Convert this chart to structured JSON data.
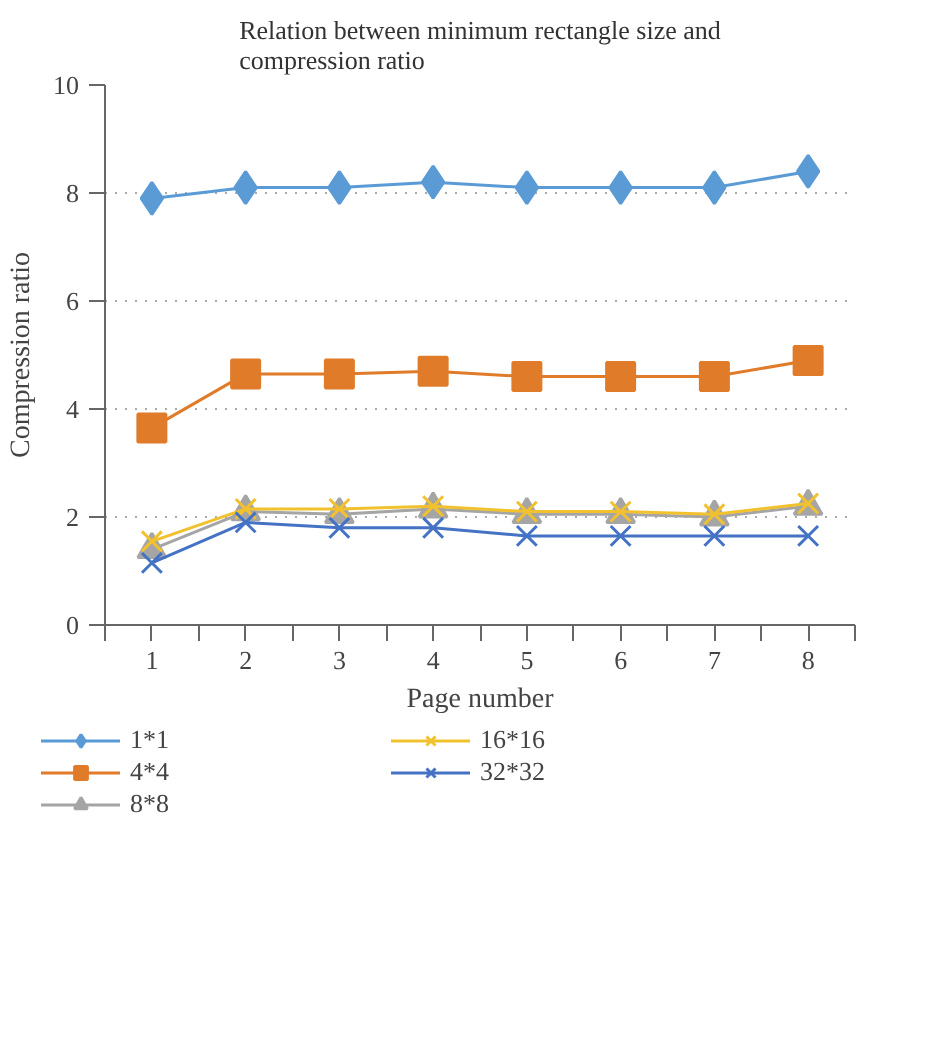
{
  "chart_data": {
    "type": "line",
    "title": "Relation between minimum rectangle size and compression ratio",
    "xlabel": "Page number",
    "ylabel": "Compression ratio",
    "categories": [
      "1",
      "2",
      "3",
      "4",
      "5",
      "6",
      "7",
      "8"
    ],
    "series": [
      {
        "name": "1*1",
        "color": "#5b9bd5",
        "marker": "diamond",
        "values": [
          7.9,
          8.1,
          8.1,
          8.2,
          8.1,
          8.1,
          8.1,
          8.4
        ]
      },
      {
        "name": "4*4",
        "color": "#e07b2a",
        "marker": "square",
        "values": [
          3.65,
          4.65,
          4.65,
          4.7,
          4.6,
          4.6,
          4.6,
          4.9
        ]
      },
      {
        "name": "8*8",
        "color": "#a5a5a5",
        "marker": "triangle",
        "values": [
          1.4,
          2.1,
          2.05,
          2.15,
          2.05,
          2.05,
          2.0,
          2.2
        ]
      },
      {
        "name": "16*16",
        "color": "#f2c12e",
        "marker": "cross",
        "values": [
          1.55,
          2.15,
          2.15,
          2.2,
          2.1,
          2.1,
          2.05,
          2.25
        ]
      },
      {
        "name": "32*32",
        "color": "#4472c4",
        "marker": "cross",
        "values": [
          1.15,
          1.9,
          1.8,
          1.8,
          1.65,
          1.65,
          1.65,
          1.65
        ]
      }
    ],
    "ylim": [
      0,
      10
    ],
    "yticks": [
      0,
      2,
      4,
      6,
      8,
      10
    ],
    "grid": "y",
    "legend": "bottom",
    "line_style": "solid"
  }
}
